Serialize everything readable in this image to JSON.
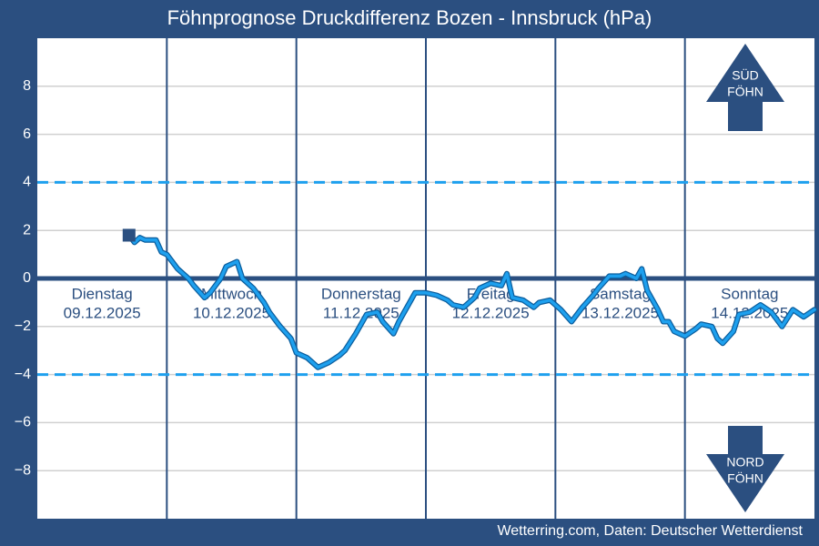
{
  "chart_data": {
    "type": "line",
    "title": "Föhnprognose Druckdifferenz Bozen - Innsbruck (hPa)",
    "source": "Wetterring.com, Daten: Deutscher Wetterdienst",
    "xlim": [
      0,
      144
    ],
    "xticks": [
      24,
      48,
      72,
      96,
      120
    ],
    "ylim": [
      -10,
      10
    ],
    "yticks": [
      {
        "value": -8,
        "label": "−8"
      },
      {
        "value": -6,
        "label": "−6"
      },
      {
        "value": -4,
        "label": "−4"
      },
      {
        "value": -2,
        "label": "−2"
      },
      0,
      2,
      4,
      6,
      8
    ],
    "grid": true,
    "zero_line": 0,
    "thresholds": [
      4,
      -4
    ],
    "days": [
      {
        "name": "Dienstag",
        "date": "09.12.2025",
        "x": 12
      },
      {
        "name": "Mittwoch",
        "date": "10.12.2025",
        "x": 36
      },
      {
        "name": "Donnerstag",
        "date": "11.12.2025",
        "x": 60
      },
      {
        "name": "Freitag",
        "date": "12.12.2025",
        "x": 84
      },
      {
        "name": "Samstag",
        "date": "13.12.2025",
        "x": 108
      },
      {
        "name": "Sonntag",
        "date": "14.12.2025",
        "x": 132
      }
    ],
    "annotations": [
      {
        "line1": "SÜD",
        "line2": "FÖHN"
      },
      {
        "line1": "NORD",
        "line2": "FÖHN"
      }
    ],
    "series": [
      {
        "color": "#1ea0ee",
        "x": [
          17,
          18,
          19,
          20,
          22,
          23,
          24,
          26,
          28,
          29,
          31,
          32,
          34,
          35,
          37,
          38,
          40,
          42,
          43,
          45,
          47,
          48,
          50,
          52,
          54,
          56,
          57,
          59,
          61,
          63,
          64,
          66,
          67,
          69,
          70,
          72,
          74,
          76,
          77,
          79,
          81,
          82,
          84,
          86,
          87,
          88,
          90,
          92,
          93,
          95,
          97,
          99,
          101,
          103,
          104,
          106,
          108,
          109,
          111,
          112,
          113,
          115,
          116,
          117,
          118,
          120,
          122,
          123,
          125,
          126,
          127,
          129,
          130,
          132,
          134,
          136,
          138,
          140,
          142,
          144
        ],
        "values": [
          1.8,
          1.5,
          1.7,
          1.6,
          1.6,
          1.1,
          1.0,
          0.4,
          0.0,
          -0.3,
          -0.8,
          -0.6,
          0.0,
          0.5,
          0.7,
          0.0,
          -0.4,
          -1.0,
          -1.4,
          -2.0,
          -2.5,
          -3.1,
          -3.3,
          -3.7,
          -3.5,
          -3.2,
          -3.0,
          -2.3,
          -1.5,
          -1.4,
          -1.8,
          -2.3,
          -1.8,
          -1.0,
          -0.6,
          -0.6,
          -0.7,
          -0.9,
          -1.1,
          -1.2,
          -0.8,
          -0.4,
          -0.2,
          -0.3,
          0.2,
          -0.8,
          -0.9,
          -1.2,
          -1.0,
          -0.9,
          -1.3,
          -1.8,
          -1.2,
          -0.7,
          -0.4,
          0.1,
          0.1,
          0.2,
          0.0,
          0.4,
          -0.5,
          -1.3,
          -1.8,
          -1.8,
          -2.2,
          -2.4,
          -2.1,
          -1.9,
          -2.0,
          -2.5,
          -2.7,
          -2.2,
          -1.5,
          -1.4,
          -1.1,
          -1.4,
          -2.0,
          -1.3,
          -1.6,
          -1.3
        ]
      }
    ]
  }
}
